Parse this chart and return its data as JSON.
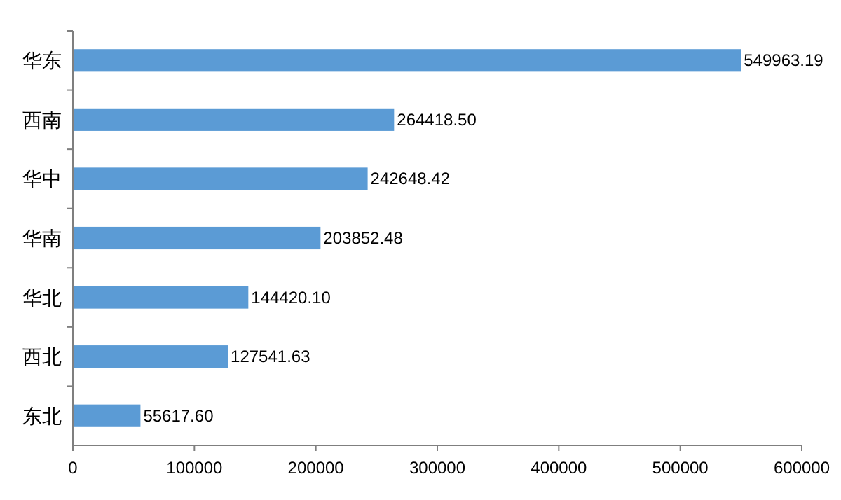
{
  "chart_data": {
    "type": "bar",
    "orientation": "horizontal",
    "categories": [
      "华东",
      "西南",
      "华中",
      "华南",
      "华北",
      "西北",
      "东北"
    ],
    "values": [
      549963.19,
      264418.5,
      242648.42,
      203852.48,
      144420.1,
      127541.63,
      55617.6
    ],
    "value_labels": [
      "549963.19",
      "264418.50",
      "242648.42",
      "203852.48",
      "144420.10",
      "127541.63",
      "55617.60"
    ],
    "color": "#5b9bd5",
    "xlim": [
      0,
      600000
    ],
    "xticks": [
      0,
      100000,
      200000,
      300000,
      400000,
      500000,
      600000
    ],
    "grid": false
  }
}
